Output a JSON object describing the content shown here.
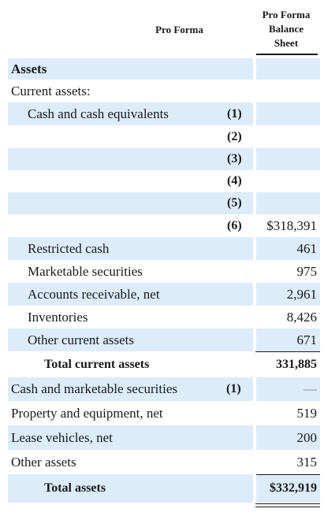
{
  "header": {
    "col1": "Pro Forma",
    "col2_line1": "Pro Forma",
    "col2_line2": "Balance",
    "col2_line3": "Sheet"
  },
  "rows": [
    {
      "label": "Assets",
      "note": "",
      "value": ""
    },
    {
      "label": "Current assets:",
      "note": "",
      "value": ""
    },
    {
      "label": "Cash and cash equivalents",
      "note": "(1)",
      "value": ""
    },
    {
      "label": "",
      "note": "(2)",
      "value": ""
    },
    {
      "label": "",
      "note": "(3)",
      "value": ""
    },
    {
      "label": "",
      "note": "(4)",
      "value": ""
    },
    {
      "label": "",
      "note": "(5)",
      "value": ""
    },
    {
      "label": "",
      "note": "(6)",
      "value": "$318,391"
    },
    {
      "label": "Restricted cash",
      "note": "",
      "value": "461"
    },
    {
      "label": "Marketable securities",
      "note": "",
      "value": "975"
    },
    {
      "label": "Accounts receivable, net",
      "note": "",
      "value": "2,961"
    },
    {
      "label": "Inventories",
      "note": "",
      "value": "8,426"
    },
    {
      "label": "Other current assets",
      "note": "",
      "value": "671"
    },
    {
      "label": "Total current assets",
      "note": "",
      "value": "331,885"
    },
    {
      "label": "Cash and marketable securities",
      "note": "(1)",
      "value": "—"
    },
    {
      "label": "Property and equipment, net",
      "note": "",
      "value": "519"
    },
    {
      "label": "Lease vehicles, net",
      "note": "",
      "value": "200"
    },
    {
      "label": "Other assets",
      "note": "",
      "value": "315"
    },
    {
      "label": "Total assets",
      "note": "",
      "value": "$332,919"
    }
  ]
}
